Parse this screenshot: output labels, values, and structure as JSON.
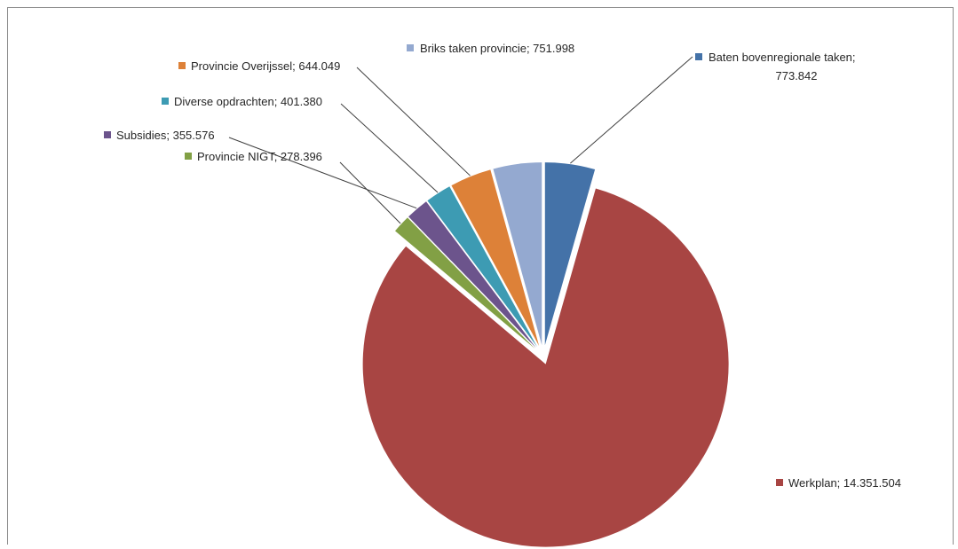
{
  "chart_data": {
    "type": "pie",
    "title": "",
    "legend": "none",
    "labels_show": "category; value",
    "slices": [
      {
        "name": "Baten bovenregionale taken",
        "value": 773842,
        "label_line1": "Baten bovenregionale taken;",
        "label_line2": "773.842",
        "color": "#4472a8"
      },
      {
        "name": "Werkplan",
        "value": 14351504,
        "label": "Werkplan; 14.351.504",
        "color": "#a84543"
      },
      {
        "name": "Provincie NIGT",
        "value": 278396,
        "label": "Provincie NIGT; 278.396",
        "color": "#82a045"
      },
      {
        "name": "Subsidies",
        "value": 355576,
        "label": "Subsidies; 355.576",
        "color": "#6c548c"
      },
      {
        "name": "Diverse opdrachten",
        "value": 401380,
        "label": "Diverse opdrachten; 401.380",
        "color": "#3d9bb3"
      },
      {
        "name": "Provincie Overijssel",
        "value": 644049,
        "label": "Provincie Overijssel; 644.049",
        "color": "#dd8138"
      },
      {
        "name": "Briks taken provincie",
        "value": 751998,
        "label": "Briks taken provincie; 751.998",
        "color": "#94a9d0"
      }
    ]
  }
}
